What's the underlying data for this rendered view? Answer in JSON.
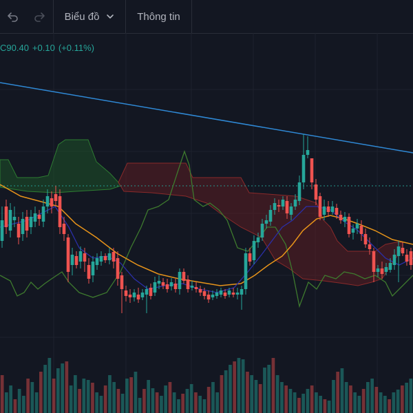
{
  "toolbar": {
    "undo_icon": "undo-arrow-icon",
    "redo_icon": "redo-arrow-icon",
    "chart_menu_label": "Biểu đồ",
    "chart_menu_icon": "chevron-down-icon",
    "info_label": "Thông tin"
  },
  "price_readout": {
    "close": "C90.40",
    "change": "+0.10",
    "change_percent": "(+0.11%)"
  },
  "colors": {
    "background": "#131722",
    "up": "#26a69a",
    "down": "#ef5350",
    "trendline": "#2f89d6",
    "price_line": "#26a69a",
    "ma_orange": "#e8941a",
    "ma_blue": "#2b2fa8",
    "cloud_green": "#1f5f2a",
    "cloud_red": "#6b1f24",
    "lagging_span": "#3e7a2e"
  }
}
